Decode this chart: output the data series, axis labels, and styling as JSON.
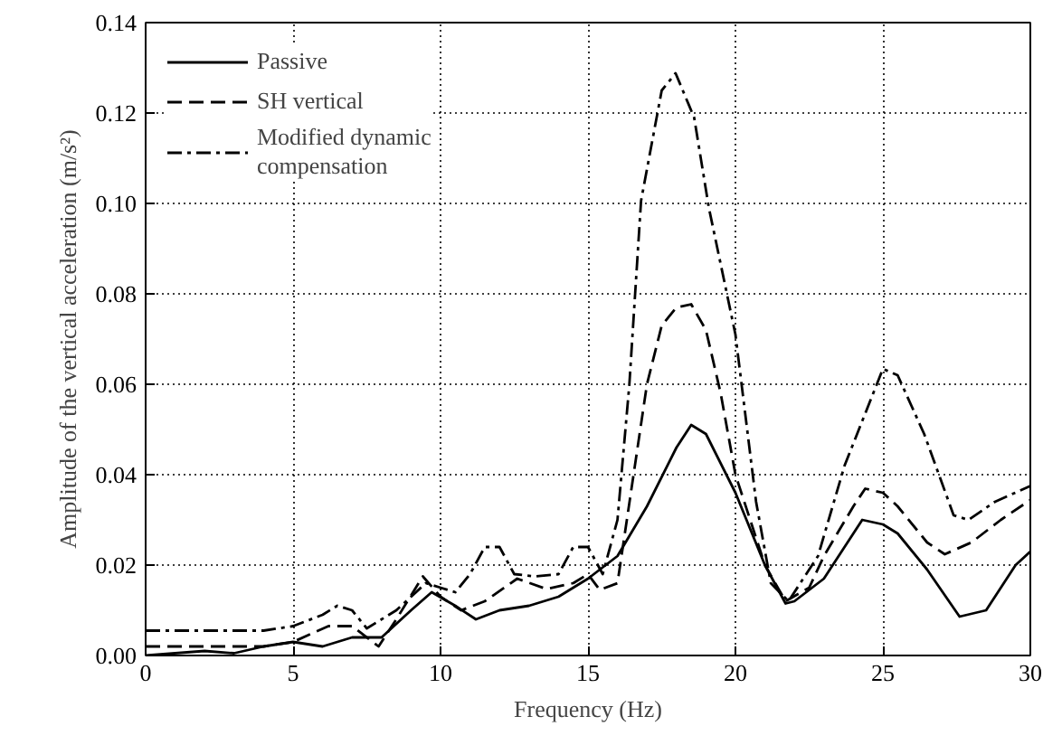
{
  "chart_data": {
    "type": "line",
    "xlabel": "Frequency (Hz)",
    "ylabel": "Amplitude of the vertical acceleration (m/s²)",
    "xlim": [
      0,
      30
    ],
    "ylim": [
      0,
      0.14
    ],
    "xticks": [
      0,
      5,
      10,
      15,
      20,
      25,
      30
    ],
    "yticks": [
      {
        "value": 0,
        "label": "0.00"
      },
      {
        "value": 0.02,
        "label": "0.02"
      },
      {
        "value": 0.04,
        "label": "0.04"
      },
      {
        "value": 0.06,
        "label": "0.06"
      },
      {
        "value": 0.08,
        "label": "0.08"
      },
      {
        "value": 0.1,
        "label": "0.10"
      },
      {
        "value": 0.12,
        "label": "0.12"
      },
      {
        "value": 0.14,
        "label": "0.14"
      }
    ],
    "grid": true,
    "legend": "top left",
    "marker": "none",
    "series": [
      {
        "name": "Passive",
        "color": "#000000",
        "line_style": "solid",
        "x": [
          0,
          2,
          3,
          4,
          5,
          6,
          7,
          8,
          9,
          9.7,
          10.5,
          11.2,
          12,
          13,
          14,
          15,
          16,
          17,
          18,
          18.5,
          19,
          20,
          21,
          21.7,
          22,
          23,
          24,
          24.3,
          25,
          25.5,
          26.5,
          27.6,
          28.5,
          29.5,
          30
        ],
        "values": [
          0,
          0.001,
          0.0005,
          0.002,
          0.003,
          0.002,
          0.004,
          0.004,
          0.01,
          0.014,
          0.011,
          0.008,
          0.01,
          0.011,
          0.013,
          0.017,
          0.022,
          0.033,
          0.046,
          0.051,
          0.049,
          0.036,
          0.02,
          0.0115,
          0.012,
          0.017,
          0.027,
          0.03,
          0.029,
          0.027,
          0.019,
          0.0086,
          0.01,
          0.02,
          0.023
        ]
      },
      {
        "name": "SH vertical",
        "color": "#000000",
        "line_style": "dashed",
        "x": [
          0,
          4,
          5,
          6.2,
          7,
          7.9,
          8.5,
          9.4,
          10,
          10.7,
          11.5,
          12.6,
          13.6,
          14.5,
          15,
          15.4,
          16,
          16.5,
          17,
          17.5,
          18,
          18.5,
          19,
          19.5,
          20,
          21,
          21.7,
          22.5,
          23,
          24,
          24.4,
          25,
          25.5,
          26.5,
          27.1,
          28,
          29,
          30
        ],
        "values": [
          0.002,
          0.002,
          0.003,
          0.0065,
          0.0065,
          0.002,
          0.008,
          0.0175,
          0.013,
          0.01,
          0.012,
          0.017,
          0.0147,
          0.016,
          0.018,
          0.0145,
          0.016,
          0.038,
          0.06,
          0.073,
          0.077,
          0.0777,
          0.072,
          0.058,
          0.04,
          0.02,
          0.012,
          0.015,
          0.022,
          0.033,
          0.0369,
          0.036,
          0.033,
          0.025,
          0.0224,
          0.025,
          0.03,
          0.0344
        ]
      },
      {
        "name": "Modified dynamic compensation",
        "color": "#000000",
        "line_style": "dashdot",
        "x": [
          0,
          4,
          5,
          6,
          6.5,
          7,
          7.5,
          8.5,
          9.5,
          10,
          10.5,
          11,
          11.5,
          12,
          12.5,
          13.2,
          14,
          14.5,
          15,
          15.5,
          16,
          16.4,
          16.8,
          17.5,
          17.97,
          18.6,
          19.1,
          20,
          20.7,
          21.2,
          21.8,
          22.8,
          23.7,
          25,
          25.5,
          26.4,
          27.4,
          27.9,
          28.8,
          30
        ],
        "values": [
          0.0055,
          0.0055,
          0.0065,
          0.009,
          0.011,
          0.01,
          0.006,
          0.01,
          0.016,
          0.015,
          0.014,
          0.018,
          0.024,
          0.024,
          0.018,
          0.0175,
          0.018,
          0.024,
          0.024,
          0.018,
          0.03,
          0.0597,
          0.1006,
          0.125,
          0.1288,
          0.119,
          0.099,
          0.071,
          0.034,
          0.016,
          0.012,
          0.022,
          0.042,
          0.0634,
          0.062,
          0.049,
          0.031,
          0.03,
          0.034,
          0.0375
        ]
      }
    ]
  }
}
